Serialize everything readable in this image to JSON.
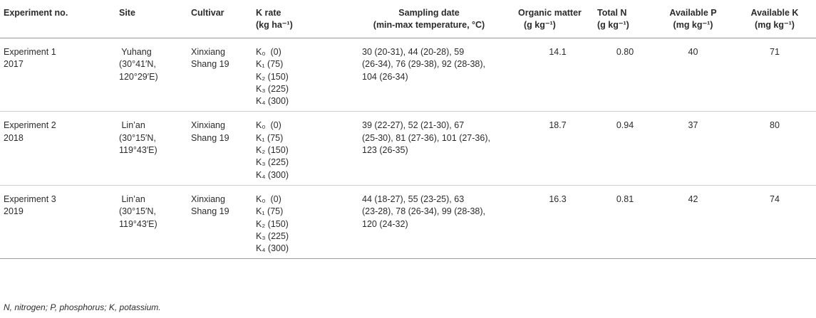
{
  "headers": [
    [
      "Experiment no."
    ],
    [
      "Site"
    ],
    [
      "Cultivar"
    ],
    [
      "K rate",
      "(kg ha⁻¹)"
    ],
    [
      "Sampling date",
      "(min-max temperature, °C)"
    ],
    [
      "Organic matter",
      "(g kg⁻¹)"
    ],
    [
      "Total N",
      "(g kg⁻¹)"
    ],
    [
      "Available P",
      "(mg kg⁻¹)"
    ],
    [
      "Available K",
      "(mg kg⁻¹)"
    ]
  ],
  "rows": [
    {
      "experiment": [
        "Experiment 1",
        "2017"
      ],
      "site": [
        " Yuhang",
        "(30°41′N,",
        "120°29′E)"
      ],
      "cultivar": [
        "Xinxiang",
        "Shang 19"
      ],
      "k_rates": [
        "K₀  (0)",
        "K₁ (75)",
        "K₂ (150)",
        "K₃ (225)",
        "K₄ (300)"
      ],
      "sampling": [
        "30 (20-31), 44 (20-28), 59",
        "(26-34), 76 (29-38), 92 (28-38),",
        "104 (26-34)"
      ],
      "organic_matter": "14.1",
      "total_n": "0.80",
      "available_p": "40",
      "available_k": "71"
    },
    {
      "experiment": [
        "Experiment 2",
        "2018"
      ],
      "site": [
        " Lin’an",
        "(30°15′N,",
        "119°43′E)"
      ],
      "cultivar": [
        "Xinxiang",
        "Shang 19"
      ],
      "k_rates": [
        "K₀  (0)",
        "K₁ (75)",
        "K₂ (150)",
        "K₃ (225)",
        "K₄ (300)"
      ],
      "sampling": [
        "39 (22-27), 52 (21-30), 67",
        "(25-30), 81 (27-36), 101 (27-36),",
        "123 (26-35)"
      ],
      "organic_matter": "18.7",
      "total_n": "0.94",
      "available_p": "37",
      "available_k": "80"
    },
    {
      "experiment": [
        "Experiment 3",
        "2019"
      ],
      "site": [
        " Lin’an",
        "(30°15′N,",
        "119°43′E)"
      ],
      "cultivar": [
        "Xinxiang",
        "Shang 19"
      ],
      "k_rates": [
        "K₀  (0)",
        "K₁ (75)",
        "K₂ (150)",
        "K₃ (225)",
        "K₄ (300)"
      ],
      "sampling": [
        "44 (18-27), 55 (23-25), 63",
        "(23-28), 78 (26-34), 99 (28-38),",
        "120 (24-32)"
      ],
      "organic_matter": "16.3",
      "total_n": "0.81",
      "available_p": "42",
      "available_k": "74"
    }
  ],
  "footnote": "N, nitrogen; P, phosphorus; K, potassium."
}
